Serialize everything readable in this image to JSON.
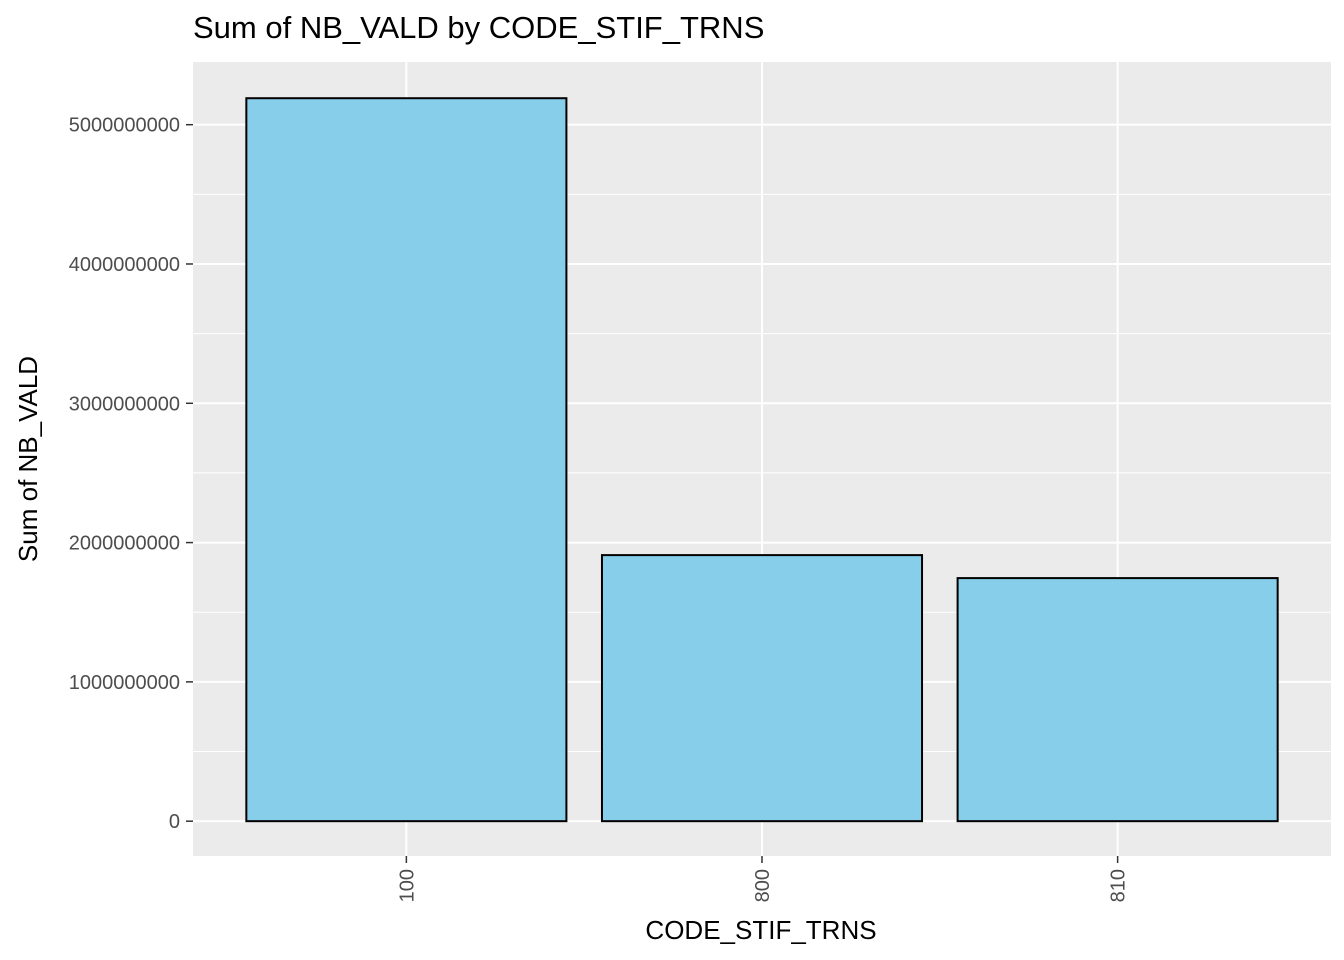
{
  "chart_data": {
    "type": "bar",
    "title": "Sum of NB_VALD by CODE_STIF_TRNS",
    "xlabel": "CODE_STIF_TRNS",
    "ylabel": "Sum of NB_VALD",
    "categories": [
      "100",
      "800",
      "810"
    ],
    "values": [
      5190000000,
      1910000000,
      1745000000
    ],
    "ylim": [
      -250000000,
      5450000000
    ],
    "yticks": [
      0,
      1000000000,
      2000000000,
      3000000000,
      4000000000,
      5000000000
    ],
    "ytick_labels": [
      "0",
      "1000000000",
      "2000000000",
      "3000000000",
      "4000000000",
      "5000000000"
    ],
    "xtick_rotation": -90,
    "grid": true,
    "legend": "none",
    "colors": {
      "bar_fill": "#87ceeb",
      "bar_stroke": "#000000",
      "panel_bg": "#ebebeb",
      "grid_major": "#ffffff",
      "tick_text": "#4d4d4d"
    }
  }
}
